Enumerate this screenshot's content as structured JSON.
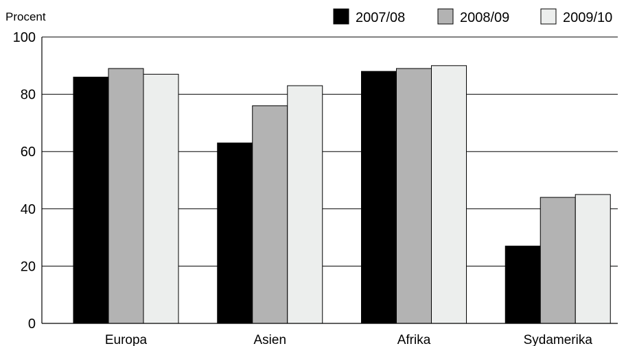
{
  "chart_data": {
    "type": "bar",
    "y_unit_label": "Procent",
    "categories": [
      "Europa",
      "Asien",
      "Afrika",
      "Sydamerika"
    ],
    "series": [
      {
        "name": "2007/08",
        "color": "#000000",
        "values": [
          86,
          63,
          88,
          27
        ]
      },
      {
        "name": "2008/09",
        "color": "#b3b3b3",
        "values": [
          89,
          76,
          89,
          44
        ]
      },
      {
        "name": "2009/10",
        "color": "#eceeed",
        "values": [
          87,
          83,
          90,
          45
        ]
      }
    ],
    "ylim": [
      0,
      100
    ],
    "yticks": [
      0,
      20,
      40,
      60,
      80,
      100
    ],
    "grid": true,
    "legend": "top-right"
  }
}
